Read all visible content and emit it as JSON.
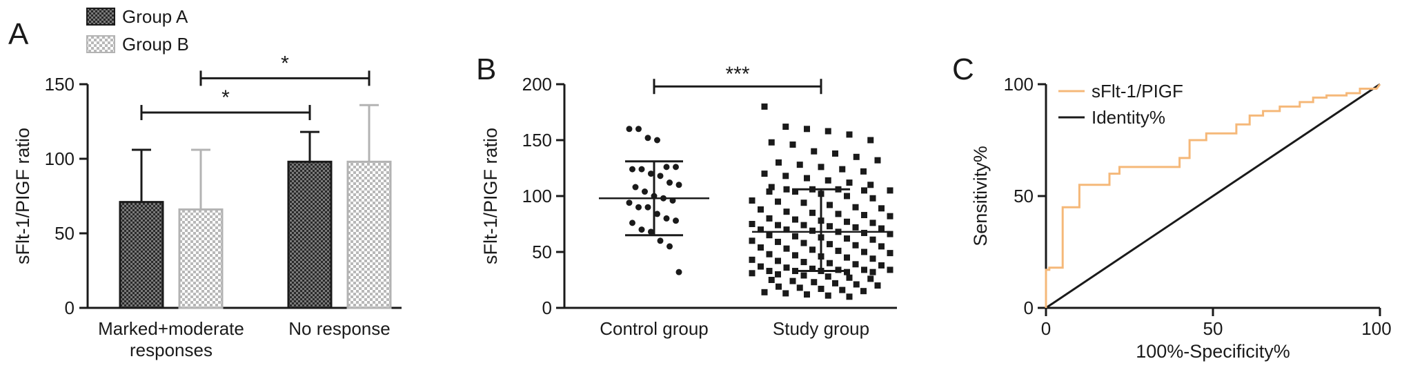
{
  "chart_data": [
    {
      "panel": "A",
      "type": "bar",
      "categories": [
        "Marked+moderate responses",
        "No response"
      ],
      "series": [
        {
          "name": "Group A",
          "values": [
            71,
            98
          ],
          "errors": [
            35,
            20
          ]
        },
        {
          "name": "Group B",
          "values": [
            66,
            98
          ],
          "errors": [
            40,
            38
          ]
        }
      ],
      "ylabel": "sFlt-1/PIGF ratio",
      "yticks": [
        "0",
        "50",
        "100",
        "150"
      ],
      "ylim": [
        0,
        150
      ],
      "legend_position": "top-left",
      "significance": [
        {
          "from": "Marked+moderate responses / Group A",
          "to": "No response / Group A",
          "label": "*",
          "level": 131
        },
        {
          "from": "Marked+moderate responses / Group B",
          "to": "No response / Group B",
          "label": "*",
          "level": 154
        }
      ],
      "colors": {
        "group_a": "#262626",
        "group_b": "#b3b3b3"
      }
    },
    {
      "panel": "B",
      "type": "scatter",
      "categories": [
        "Control group",
        "Study group"
      ],
      "groups": [
        {
          "name": "Control group",
          "mean": 98,
          "sd_upper": 131,
          "sd_lower": 65,
          "points": [
            160,
            160,
            152,
            150,
            126,
            126,
            124,
            124,
            120,
            118,
            112,
            110,
            108,
            104,
            100,
            98,
            96,
            94,
            90,
            90,
            84,
            80,
            78,
            76,
            70,
            68,
            60,
            55,
            32
          ]
        },
        {
          "name": "Study group",
          "mean": 68,
          "sd_upper": 106,
          "sd_lower": 33,
          "points": [
            180,
            162,
            160,
            158,
            155,
            150,
            148,
            146,
            140,
            138,
            135,
            132,
            130,
            128,
            126,
            124,
            122,
            120,
            118,
            116,
            114,
            112,
            110,
            108,
            106,
            106,
            106,
            105,
            105,
            104,
            104,
            102,
            100,
            98,
            96,
            95,
            94,
            92,
            90,
            89,
            88,
            86,
            85,
            84,
            83,
            82,
            80,
            79,
            78,
            77,
            76,
            75,
            74,
            74,
            73,
            72,
            71,
            70,
            70,
            69,
            68,
            67,
            66,
            65,
            64,
            63,
            62,
            61,
            60,
            59,
            58,
            57,
            56,
            55,
            54,
            53,
            52,
            51,
            50,
            49,
            48,
            47,
            46,
            45,
            44,
            43,
            42,
            41,
            40,
            39,
            38,
            37,
            36,
            35,
            34,
            34,
            34,
            33,
            33,
            33,
            32,
            32,
            31,
            30,
            29,
            28,
            27,
            26,
            25,
            24,
            23,
            22,
            21,
            20,
            19,
            18,
            17,
            16,
            15,
            14,
            13,
            12,
            11,
            10
          ]
        }
      ],
      "ylabel": "sFlt-1/PIGF ratio",
      "yticks": [
        "0",
        "50",
        "100",
        "150",
        "200"
      ],
      "ylim": [
        0,
        200
      ],
      "significance": [
        {
          "from": "Control group",
          "to": "Study group",
          "label": "***",
          "level": 198
        }
      ]
    },
    {
      "panel": "C",
      "type": "line",
      "series": [
        {
          "name": "sFlt-1/PIGF",
          "color": "#f5b879",
          "x": [
            0,
            0,
            1,
            1,
            5,
            5,
            10,
            10,
            19,
            19,
            22,
            22,
            40,
            40,
            43,
            43,
            48,
            48,
            57,
            57,
            61,
            61,
            65,
            65,
            70,
            70,
            76,
            76,
            80,
            80,
            84,
            84,
            90,
            90,
            94,
            94,
            99,
            100
          ],
          "y": [
            0,
            17,
            17,
            18,
            18,
            45,
            45,
            55,
            55,
            60,
            60,
            63,
            63,
            67,
            67,
            75,
            75,
            78,
            78,
            82,
            82,
            86,
            86,
            88,
            88,
            90,
            90,
            92,
            92,
            94,
            94,
            95,
            95,
            96,
            96,
            98,
            98,
            100
          ]
        },
        {
          "name": "Identity%",
          "color": "#1a1a1a",
          "x": [
            0,
            100
          ],
          "y": [
            0,
            100
          ]
        }
      ],
      "xlabel": "100%-Specificity%",
      "ylabel": "Sensitivity%",
      "xticks": [
        "0",
        "50",
        "100"
      ],
      "yticks": [
        "0",
        "50",
        "100"
      ],
      "xlim": [
        0,
        100
      ],
      "ylim": [
        0,
        100
      ],
      "legend_position": "top-left"
    }
  ]
}
